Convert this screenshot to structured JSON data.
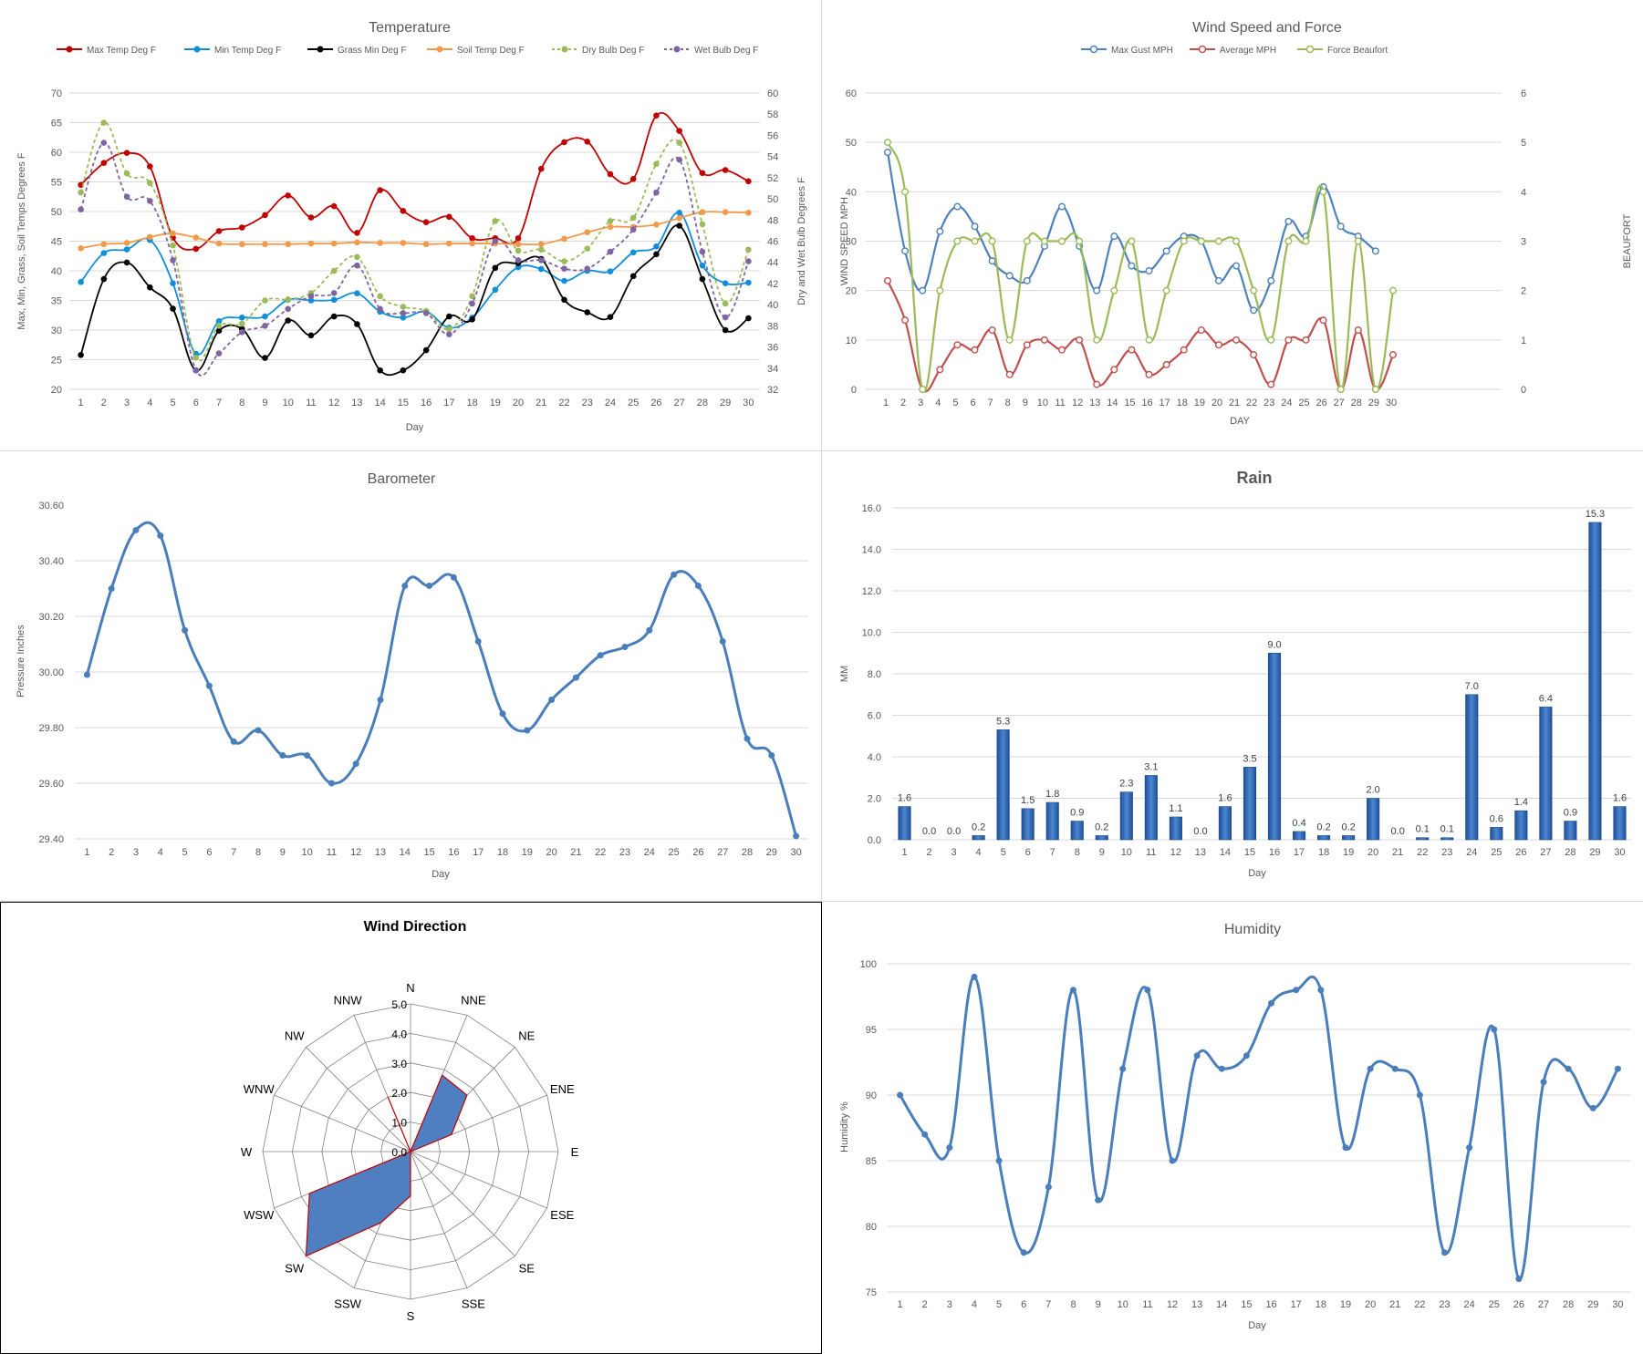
{
  "colors": {
    "grid": "#d9d9d9",
    "axis_text": "#595959",
    "title_text": "#595959",
    "barometer": "#4a7ebb",
    "humidity": "#4a7ebb",
    "rain_bar": "#2e65b4",
    "rose_fill": "#4f7fc1",
    "rose_edge": "#c00000"
  },
  "charts": {
    "temperature": {
      "type": "line",
      "title": "Temperature",
      "xlabel": "Day",
      "ylabel_left": "Max, Min, Grass, Soil Temps Degrees F",
      "ylabel_right": "Dry and Wet Bulb Degrees F",
      "x": [
        1,
        2,
        3,
        4,
        5,
        6,
        7,
        8,
        9,
        10,
        11,
        12,
        13,
        14,
        15,
        16,
        17,
        18,
        19,
        20,
        21,
        22,
        23,
        24,
        25,
        26,
        27,
        28,
        29,
        30
      ],
      "ylim_left": [
        20,
        70
      ],
      "yticks_left": [
        20,
        25,
        30,
        35,
        40,
        45,
        50,
        55,
        60,
        65,
        70
      ],
      "ylim_right": [
        32,
        60
      ],
      "yticks_right": [
        32,
        34,
        36,
        38,
        40,
        42,
        44,
        46,
        48,
        50,
        52,
        54,
        56,
        58,
        60
      ],
      "legend_position": "top",
      "series": [
        {
          "name": "Max Temp Deg F",
          "axis": "left",
          "color": "#c00000",
          "dashed": false,
          "values": [
            54.5,
            58.2,
            59.9,
            57.6,
            45.6,
            43.7,
            46.7,
            47.3,
            49.4,
            52.7,
            49.0,
            50.9,
            46.4,
            53.6,
            50.1,
            48.2,
            49.1,
            45.5,
            45.5,
            45.5,
            57.2,
            61.7,
            61.8,
            56.3,
            55.5,
            66.2,
            63.6,
            56.5,
            57.0,
            55.1
          ]
        },
        {
          "name": "Min Temp Deg F",
          "axis": "left",
          "color": "#0e8fd6",
          "dashed": false,
          "values": [
            38.1,
            43.0,
            43.6,
            45.2,
            37.9,
            26.0,
            31.5,
            32.1,
            32.3,
            35.1,
            35.0,
            35.1,
            36.2,
            33.1,
            32.1,
            33.1,
            30.4,
            32.1,
            36.8,
            40.6,
            40.3,
            38.3,
            40.0,
            39.9,
            43.1,
            44.1,
            49.8,
            40.9,
            37.9,
            38.0
          ]
        },
        {
          "name": "Grass Min Deg F",
          "axis": "left",
          "color": "#000000",
          "dashed": false,
          "values": [
            25.8,
            38.6,
            41.4,
            37.2,
            33.6,
            23.2,
            29.9,
            30.2,
            25.3,
            31.6,
            29.1,
            32.3,
            31.0,
            23.2,
            23.2,
            26.6,
            32.3,
            31.8,
            40.5,
            41.3,
            42.0,
            35.1,
            33.0,
            32.2,
            39.1,
            42.8,
            47.6,
            38.6,
            30.0,
            32.0
          ]
        },
        {
          "name": "Soil Temp Deg F",
          "axis": "left",
          "color": "#f4994a",
          "dashed": false,
          "values": [
            43.8,
            44.5,
            44.7,
            45.7,
            46.3,
            45.6,
            44.6,
            44.5,
            44.5,
            44.5,
            44.6,
            44.6,
            44.8,
            44.7,
            44.7,
            44.5,
            44.6,
            44.6,
            44.6,
            44.5,
            44.5,
            45.4,
            46.5,
            47.4,
            47.4,
            47.8,
            48.9,
            49.9,
            49.9,
            49.8
          ]
        },
        {
          "name": "Dry Bulb Deg F",
          "axis": "right",
          "color": "#9bbb59",
          "dashed": true,
          "values": [
            50.6,
            57.2,
            52.4,
            51.5,
            45.6,
            35.0,
            38.0,
            38.2,
            40.4,
            40.5,
            41.1,
            43.2,
            44.5,
            40.8,
            39.8,
            39.4,
            37.7,
            40.8,
            47.9,
            45.1,
            45.2,
            44.1,
            45.3,
            47.9,
            48.2,
            53.3,
            55.3,
            47.6,
            40.1,
            45.2
          ]
        },
        {
          "name": "Wet Bulb Deg F",
          "axis": "right",
          "color": "#8064a2",
          "dashed": true,
          "values": [
            49.0,
            55.3,
            50.2,
            49.8,
            44.2,
            33.8,
            35.4,
            37.4,
            38.0,
            39.6,
            40.8,
            41.1,
            43.7,
            39.6,
            39.2,
            39.2,
            37.2,
            40.1,
            46.0,
            44.2,
            44.2,
            43.4,
            43.4,
            45.0,
            47.1,
            50.6,
            53.7,
            45.0,
            38.8,
            44.1
          ]
        }
      ]
    },
    "wind": {
      "type": "line",
      "title": "Wind Speed and Force",
      "xlabel": "DAY",
      "ylabel_left": "WIND SPEED MPH",
      "ylabel_right": "BEAUFORT",
      "x": [
        1,
        2,
        3,
        4,
        5,
        6,
        7,
        8,
        9,
        10,
        11,
        12,
        13,
        14,
        15,
        16,
        17,
        18,
        19,
        20,
        21,
        22,
        23,
        24,
        25,
        26,
        27,
        28,
        29,
        30
      ],
      "ylim_left": [
        0,
        60
      ],
      "yticks_left": [
        0,
        10,
        20,
        30,
        40,
        50,
        60
      ],
      "ylim_right": [
        0,
        6
      ],
      "yticks_right": [
        0,
        1,
        2,
        3,
        4,
        5,
        6
      ],
      "legend_position": "top",
      "series": [
        {
          "name": "Max Gust MPH",
          "axis": "left",
          "color": "#4f81bd",
          "values": [
            48,
            28,
            20,
            32,
            37,
            33,
            26,
            23,
            22,
            29,
            37,
            29,
            20,
            31,
            25,
            24,
            28,
            31,
            30,
            22,
            25,
            16,
            22,
            34,
            31,
            41,
            33,
            31,
            28,
            null
          ]
        },
        {
          "name": "Average MPH",
          "axis": "left",
          "color": "#c0504d",
          "values": [
            22,
            14,
            0,
            4,
            9,
            8,
            12,
            3,
            9,
            10,
            8,
            10,
            1,
            4,
            8,
            3,
            5,
            8,
            12,
            9,
            10,
            7,
            1,
            10,
            10,
            14,
            0,
            12,
            0,
            7
          ]
        },
        {
          "name": "Force Beaufort",
          "axis": "right",
          "color": "#9bbb59",
          "values": [
            5,
            4,
            0,
            2,
            3,
            3,
            3,
            1,
            3,
            3,
            3,
            3,
            1,
            2,
            3,
            1,
            2,
            3,
            3,
            3,
            3,
            2,
            1,
            3,
            3,
            4,
            0,
            3,
            0,
            2
          ]
        }
      ]
    },
    "barometer": {
      "type": "line",
      "title": "Barometer",
      "xlabel": "Day",
      "ylabel": "Pressure Inches",
      "x": [
        1,
        2,
        3,
        4,
        5,
        6,
        7,
        8,
        9,
        10,
        11,
        12,
        13,
        14,
        15,
        16,
        17,
        18,
        19,
        20,
        21,
        22,
        23,
        24,
        25,
        26,
        27,
        28,
        29,
        30
      ],
      "ylim": [
        29.4,
        30.6
      ],
      "yticks": [
        "29.40",
        "29.60",
        "29.80",
        "30.00",
        "30.20",
        "30.40",
        "30.60"
      ],
      "values": [
        29.99,
        30.3,
        30.51,
        30.49,
        30.15,
        29.95,
        29.75,
        29.79,
        29.7,
        29.7,
        29.6,
        29.67,
        29.9,
        30.31,
        30.31,
        30.34,
        30.11,
        29.85,
        29.79,
        29.9,
        29.98,
        30.06,
        30.09,
        30.15,
        30.35,
        30.31,
        30.11,
        29.76,
        29.7,
        29.41
      ]
    },
    "rain": {
      "type": "bar",
      "title": "Rain",
      "xlabel": "Day",
      "ylabel": "MM",
      "categories": [
        "1",
        "2",
        "3",
        "4",
        "5",
        "6",
        "7",
        "8",
        "9",
        "10",
        "11",
        "12",
        "13",
        "14",
        "15",
        "16",
        "17",
        "18",
        "19",
        "20",
        "21",
        "22",
        "23",
        "24",
        "25",
        "26",
        "27",
        "28",
        "29",
        "30"
      ],
      "ylim": [
        0,
        16
      ],
      "yticks": [
        "0.0",
        "2.0",
        "4.0",
        "6.0",
        "8.0",
        "10.0",
        "12.0",
        "14.0",
        "16.0"
      ],
      "values": [
        1.6,
        0.0,
        0.0,
        0.2,
        5.3,
        1.5,
        1.8,
        0.9,
        0.2,
        2.3,
        3.1,
        1.1,
        0.0,
        1.6,
        3.5,
        9.0,
        0.4,
        0.2,
        0.2,
        2.0,
        0.0,
        0.1,
        0.1,
        7.0,
        0.6,
        1.4,
        6.4,
        0.9,
        15.3,
        1.6
      ],
      "labels": [
        "1.6",
        "0.0",
        "0.0",
        "0.2",
        "5.3",
        "1.5",
        "1.8",
        "0.9",
        "0.2",
        "2.3",
        "3.1",
        "1.1",
        "0.0",
        "1.6",
        "3.5",
        "9.0",
        "0.4",
        "0.2",
        "0.2",
        "2.0",
        "0.0",
        "0.1",
        "0.1",
        "7.0",
        "0.6",
        "1.4",
        "6.4",
        "0.9",
        "15.3",
        "1.6"
      ]
    },
    "wind_direction": {
      "type": "radar",
      "title": "Wind Direction",
      "directions": [
        "N",
        "NNE",
        "NE",
        "ENE",
        "E",
        "ESE",
        "SE",
        "SSE",
        "S",
        "SSW",
        "SW",
        "WSW",
        "W",
        "WNW",
        "NW",
        "NNW"
      ],
      "rlim": [
        0,
        5
      ],
      "rticks": [
        "0.0",
        "1.0",
        "2.0",
        "3.0",
        "4.0",
        "5.0"
      ],
      "values": [
        0,
        2.8,
        2.7,
        1.5,
        0,
        0,
        0,
        0,
        1.5,
        2.6,
        5.0,
        3.7,
        0,
        0,
        0,
        2.0
      ]
    },
    "humidity": {
      "type": "line",
      "title": "Humidity",
      "xlabel": "Day",
      "ylabel": "Humidity %",
      "x": [
        1,
        2,
        3,
        4,
        5,
        6,
        7,
        8,
        9,
        10,
        11,
        12,
        13,
        14,
        15,
        16,
        17,
        18,
        19,
        20,
        21,
        22,
        23,
        24,
        25,
        26,
        27,
        28,
        29,
        30
      ],
      "ylim": [
        75,
        100
      ],
      "yticks": [
        "75",
        "80",
        "85",
        "90",
        "95",
        "100"
      ],
      "values": [
        90,
        87,
        86,
        99,
        85,
        78,
        83,
        98,
        82,
        92,
        98,
        85,
        93,
        92,
        93,
        97,
        98,
        98,
        86,
        92,
        92,
        90,
        78,
        86,
        95,
        76,
        91,
        92,
        89,
        92
      ]
    }
  }
}
